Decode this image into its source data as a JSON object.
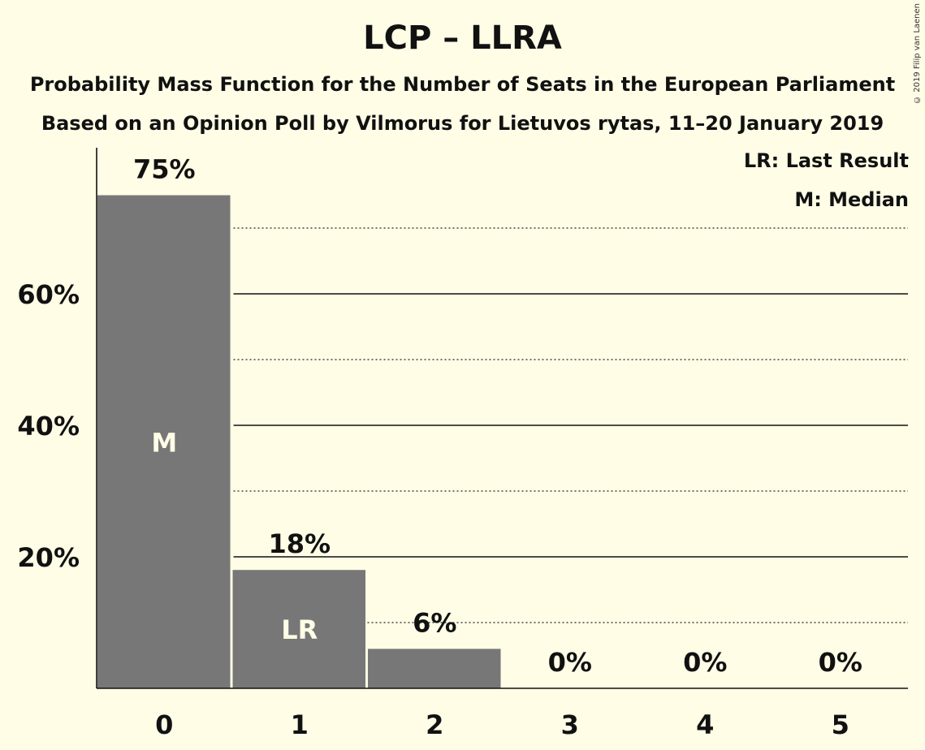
{
  "title": "LCP – LLRA",
  "subtitle_1": "Probability Mass Function for the Number of Seats in the European Parliament",
  "subtitle_2": "Based on an Opinion Poll by Vilmorus for Lietuvos rytas, 11–20 January 2019",
  "copyright": "© 2019 Filip van Laenen",
  "legend": {
    "last_result": "LR: Last Result",
    "median": "M: Median"
  },
  "colors": {
    "background": "#fffde6",
    "bar": "#777777"
  },
  "chart_data": {
    "type": "bar",
    "categories": [
      "0",
      "1",
      "2",
      "3",
      "4",
      "5"
    ],
    "values": [
      75,
      18,
      6,
      0,
      0,
      0
    ],
    "value_labels": [
      "75%",
      "18%",
      "6%",
      "0%",
      "0%",
      "0%"
    ],
    "bar_markers": [
      "M",
      "LR",
      "",
      "",
      "",
      ""
    ],
    "ylim": [
      0,
      82
    ],
    "yticks": [
      20,
      40,
      60
    ],
    "ytick_labels": [
      "20%",
      "40%",
      "60%"
    ],
    "dotted_gridlines": [
      10,
      30,
      50,
      70
    ],
    "xlabel": "",
    "ylabel": ""
  }
}
